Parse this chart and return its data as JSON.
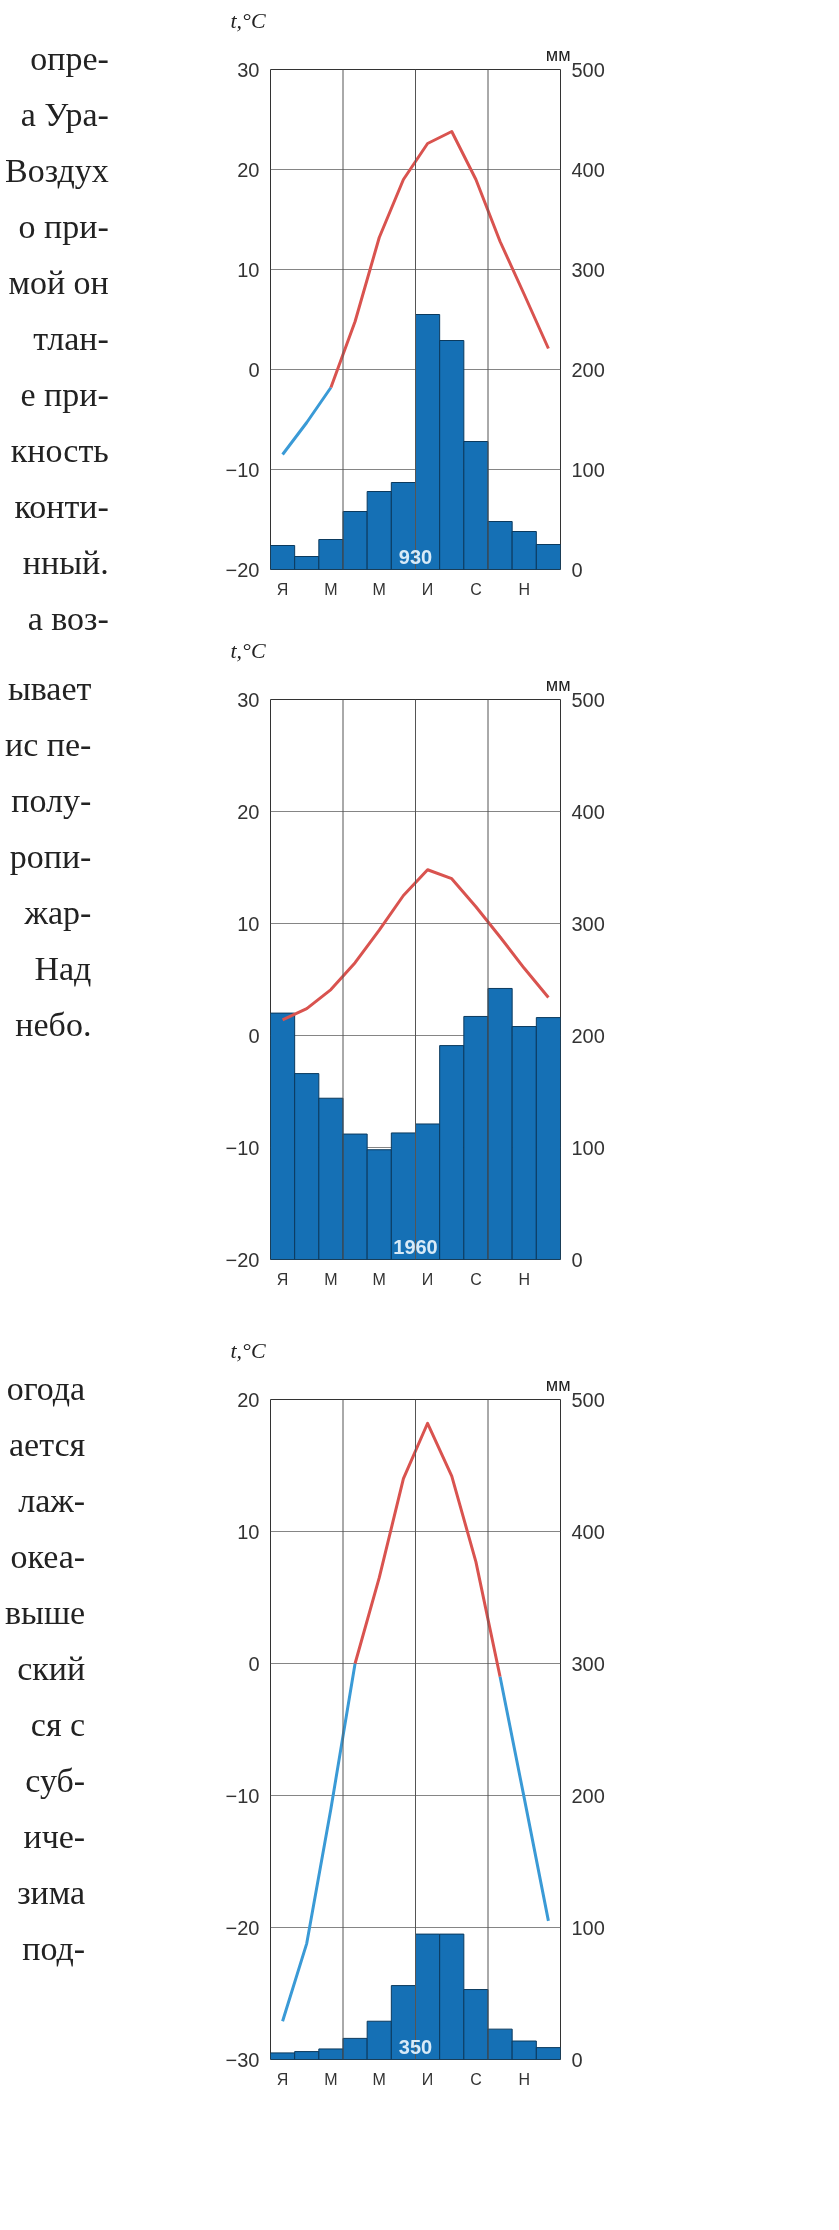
{
  "chart_data": [
    {
      "type": "bar",
      "ylabel": "t,°C",
      "y2label": "мм",
      "categories": [
        "Я",
        null,
        "М",
        null,
        "М",
        null,
        "И",
        null,
        "С",
        null,
        "Н",
        null
      ],
      "ylim": [
        -20,
        30
      ],
      "yticks": [
        -20,
        -10,
        0,
        10,
        20,
        30
      ],
      "y2lim": [
        0,
        500
      ],
      "y2ticks": [
        0,
        100,
        200,
        300,
        400,
        500
      ],
      "grid": "y",
      "annotations": [
        "930",
        "опре-",
        "а Ура-",
        "Воздух",
        "о при-",
        "мой он",
        "тлан-",
        "е при-",
        "кность",
        "конти-",
        "нный.",
        "а воз-"
      ],
      "series": [
        {
          "axis": "y2",
          "color": "#1570b5",
          "values": [
            24,
            13,
            30,
            58,
            78,
            87,
            255,
            229,
            128,
            48,
            38,
            25
          ]
        },
        {
          "type": "line",
          "color": "#3a9ad6",
          "values": [
            -8.5,
            -5.3,
            -1.8,
            null,
            null,
            null,
            null,
            null,
            null,
            null,
            null,
            null
          ]
        },
        {
          "type": "line",
          "color": "#d9534f",
          "values": [
            null,
            null,
            -1.8,
            4.8,
            13.2,
            19,
            22.6,
            23.8,
            19,
            12.8,
            7.5,
            2.1
          ]
        }
      ]
    },
    {
      "type": "bar",
      "ylabel": "t,°C",
      "y2label": "мм",
      "categories": [
        "Я",
        null,
        "М",
        null,
        "М",
        null,
        "И",
        null,
        "С",
        null,
        "Н",
        null
      ],
      "ylim": [
        -20,
        30
      ],
      "yticks": [
        -20,
        -10,
        0,
        10,
        20,
        30
      ],
      "y2lim": [
        0,
        500
      ],
      "y2ticks": [
        0,
        100,
        200,
        300,
        400,
        500
      ],
      "grid": "y",
      "annotations": [
        "1960",
        "ывает",
        "ис пе-",
        "полу-",
        "ропи-",
        "жар-",
        "Над",
        "небо."
      ],
      "series": [
        {
          "axis": "y2",
          "color": "#1570b5",
          "values": [
            220,
            166,
            144,
            112,
            98,
            113,
            121,
            191,
            217,
            242,
            208,
            216
          ]
        },
        {
          "type": "line",
          "color": "#d9534f",
          "values": [
            1.4,
            2.4,
            4.1,
            6.5,
            9.4,
            12.5,
            14.8,
            14,
            11.5,
            8.8,
            6,
            3.4
          ]
        }
      ]
    },
    {
      "type": "bar",
      "ylabel": "t,°C",
      "y2label": "мм",
      "categories": [
        "Я",
        null,
        "М",
        null,
        "М",
        null,
        "И",
        null,
        "С",
        null,
        "Н",
        null
      ],
      "ylim": [
        -30,
        20
      ],
      "yticks": [
        -30,
        -20,
        -10,
        0,
        10,
        20
      ],
      "y2lim": [
        0,
        500
      ],
      "y2ticks": [
        0,
        100,
        200,
        300,
        400,
        500
      ],
      "grid": "y",
      "annotations": [
        "350",
        "огода",
        "ается",
        "лаж-",
        "океа-",
        "выше",
        "ский",
        "ся с",
        "суб-",
        "иче-",
        "зима",
        "под-"
      ],
      "series": [
        {
          "axis": "y2",
          "color": "#1570b5",
          "values": [
            5,
            6,
            8,
            16,
            29,
            56,
            95,
            95,
            53,
            23,
            14,
            9
          ]
        },
        {
          "type": "line",
          "color": "#3a9ad6",
          "values": [
            -27.1,
            -21.2,
            -11,
            0,
            null,
            null,
            null,
            null,
            null,
            null,
            null,
            null
          ]
        },
        {
          "type": "line",
          "color": "#d9534f",
          "values": [
            null,
            null,
            null,
            0,
            6.5,
            14,
            18.2,
            14.2,
            7.7,
            -1,
            null,
            null
          ]
        },
        {
          "type": "line",
          "color": "#3a9ad6",
          "values": [
            null,
            null,
            null,
            null,
            null,
            null,
            null,
            null,
            null,
            -1,
            -10.2,
            -19.5
          ]
        }
      ]
    }
  ]
}
